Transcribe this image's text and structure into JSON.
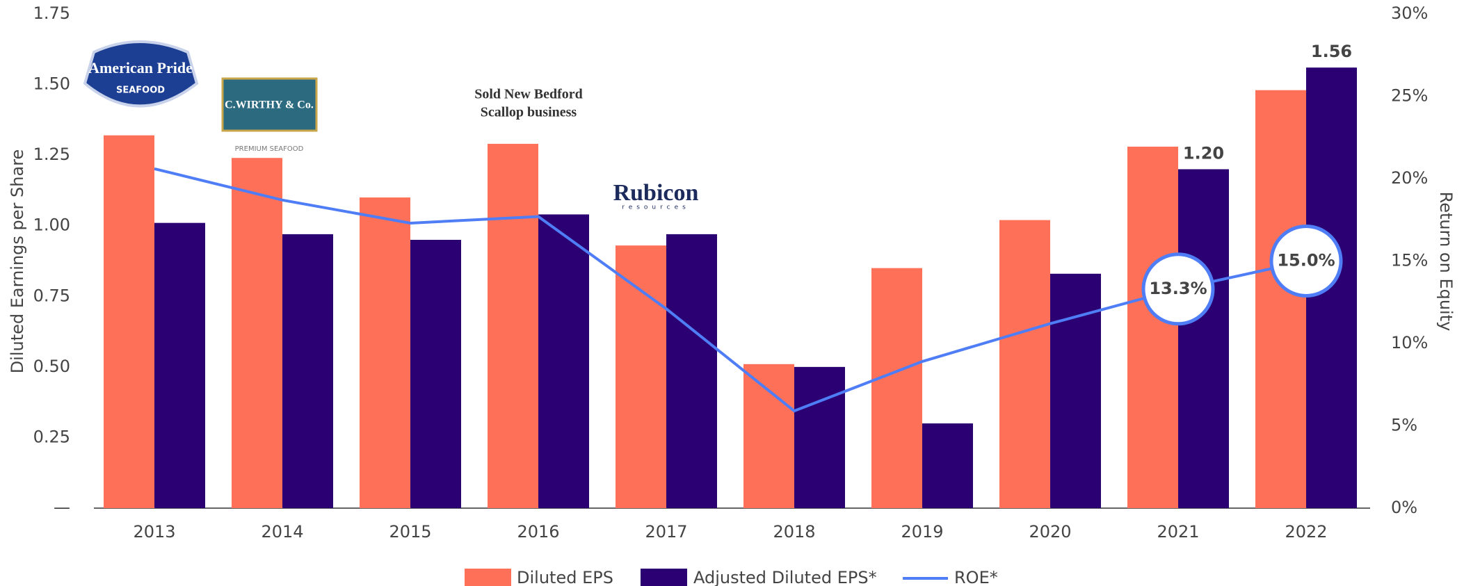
{
  "chart_data": {
    "type": "bar",
    "categories": [
      "2013",
      "2014",
      "2015",
      "2016",
      "2017",
      "2018",
      "2019",
      "2020",
      "2021",
      "2022"
    ],
    "series": [
      {
        "name": "Diluted EPS",
        "color": "#ff7059",
        "values": [
          1.32,
          1.24,
          1.1,
          1.29,
          0.93,
          0.51,
          0.85,
          1.02,
          1.28,
          1.48
        ]
      },
      {
        "name": "Adjusted Diluted EPS*",
        "color": "#2a0073",
        "values": [
          1.01,
          0.97,
          0.95,
          1.04,
          0.97,
          0.5,
          0.3,
          0.83,
          1.2,
          1.56
        ],
        "value_labels": [
          null,
          null,
          null,
          null,
          null,
          null,
          null,
          null,
          "1.20",
          "1.56"
        ]
      },
      {
        "name": "ROE*",
        "color": "#4f7df5",
        "type": "line",
        "axis": "y2",
        "values": [
          20.6,
          18.7,
          17.3,
          17.7,
          12.1,
          5.9,
          8.9,
          11.2,
          13.3,
          15.0
        ],
        "value_labels": [
          null,
          null,
          null,
          null,
          null,
          null,
          null,
          null,
          "13.3%",
          "15.0%"
        ]
      }
    ],
    "ylabel": "Diluted Earnings per Share",
    "y2label": "Return on Equity",
    "ylim": [
      0,
      1.75
    ],
    "yticks": [
      {
        "value": 0,
        "label": "—"
      },
      0.25,
      {
        "value": 0.5,
        "label": "0.50"
      },
      0.75,
      {
        "value": 1,
        "label": "1.00"
      },
      1.25,
      {
        "value": 1.5,
        "label": "1.50"
      },
      1.75
    ],
    "y2lim": [
      0,
      30
    ],
    "y2ticks": [
      {
        "value": 0,
        "label": "0%"
      },
      {
        "value": 5,
        "label": "5%"
      },
      {
        "value": 10,
        "label": "10%"
      },
      {
        "value": 15,
        "label": "15%"
      },
      {
        "value": 20,
        "label": "20%"
      },
      {
        "value": 25,
        "label": "25%"
      },
      {
        "value": 30,
        "label": "30%"
      }
    ],
    "annotations": [
      "Sold New Bedford",
      "Scallop business",
      "American Pride",
      "SEAFOOD",
      "C.WIRTHY & Co.",
      "PREMIUM SEAFOOD",
      "Rubicon",
      "resources"
    ],
    "legend": "bottom",
    "grid": false
  }
}
